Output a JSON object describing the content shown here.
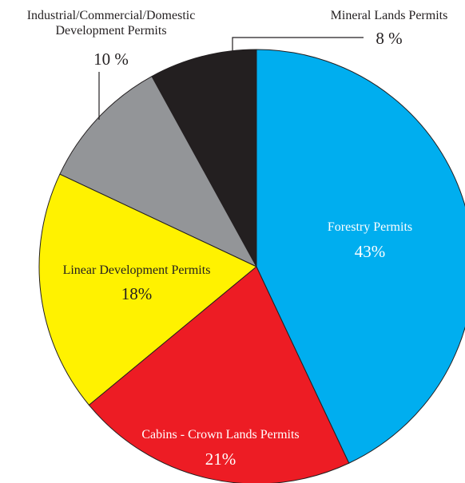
{
  "chart_data": {
    "type": "pie",
    "categories": [
      "Forestry Permits",
      "Cabins - Crown Lands Permits",
      "Linear Development Permits",
      "Industrial/Commercial/Domestic Development Permits",
      "Mineral Lands Permits"
    ],
    "values": [
      43,
      21,
      18,
      10,
      8
    ],
    "value_labels": [
      "43%",
      "21%",
      "18%",
      "10 %",
      "8 %"
    ],
    "colors": [
      "#00aeef",
      "#ed1c24",
      "#fff200",
      "#939598",
      "#231f20"
    ]
  }
}
